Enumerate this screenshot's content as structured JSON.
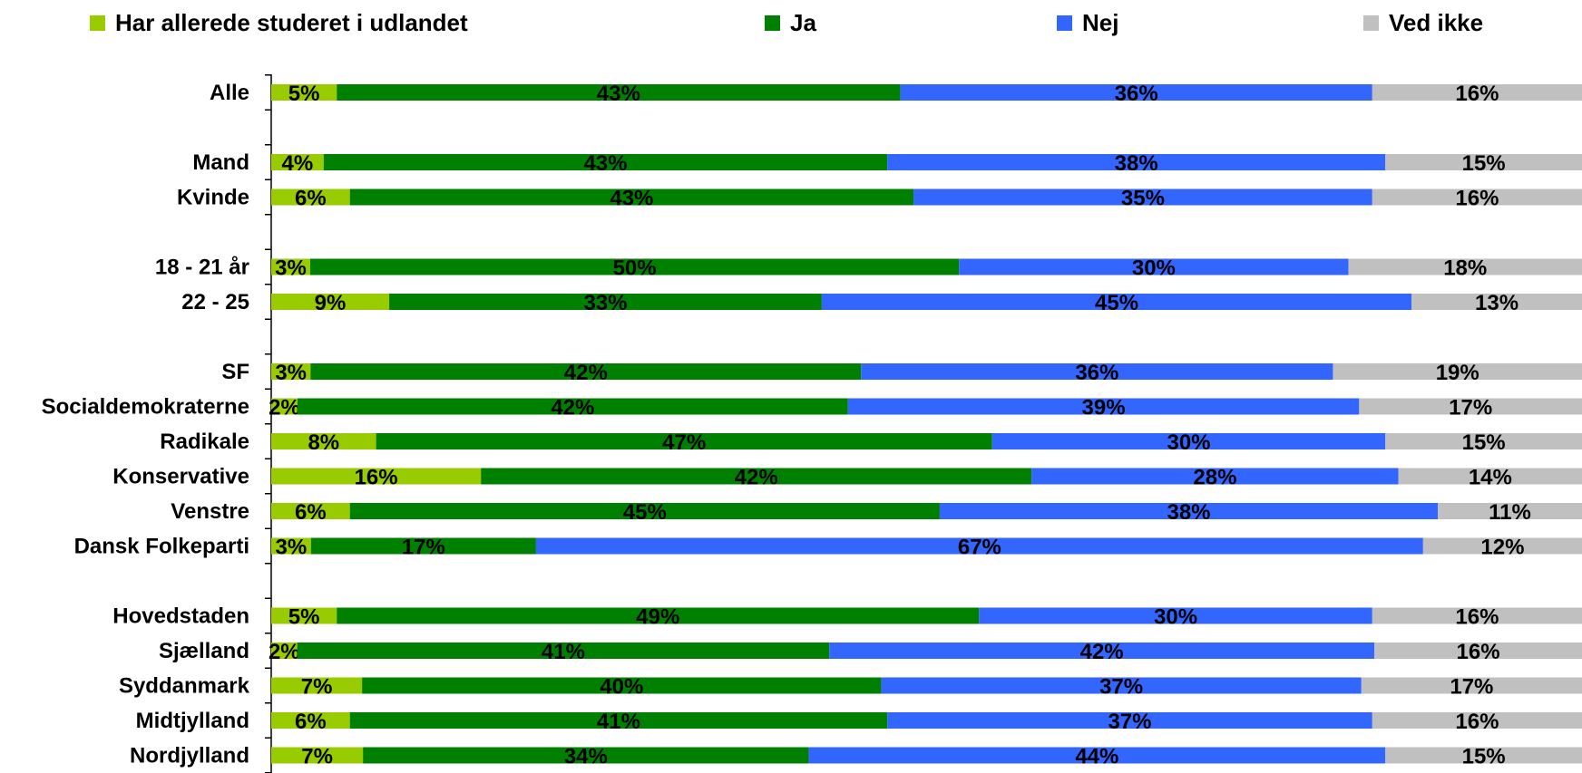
{
  "chart_data": {
    "type": "bar",
    "orientation": "horizontal",
    "stacked": true,
    "legend_position": "top",
    "grid": false,
    "xlim": [
      0,
      100
    ],
    "categories": [
      "Alle",
      "Mand",
      "Kvinde",
      "18 - 21 år",
      "22 - 25",
      "SF",
      "Socialdemokraterne",
      "Radikale",
      "Konservative",
      "Venstre",
      "Dansk Folkeparti",
      "Hovedstaden",
      "Sjælland",
      "Syddanmark",
      "Midtjylland",
      "Nordjylland"
    ],
    "groups": [
      [
        0
      ],
      [
        1,
        2
      ],
      [
        3,
        4
      ],
      [
        5,
        6,
        7,
        8,
        9,
        10
      ],
      [
        11,
        12,
        13,
        14,
        15
      ]
    ],
    "series": [
      {
        "name": "Har allerede studeret i udlandet",
        "color": "#99CC00",
        "values": [
          5,
          4,
          6,
          3,
          9,
          3,
          2,
          8,
          16,
          6,
          3,
          5,
          2,
          7,
          6,
          7
        ]
      },
      {
        "name": "Ja",
        "color": "#008000",
        "values": [
          43,
          43,
          43,
          50,
          33,
          42,
          42,
          47,
          42,
          45,
          17,
          49,
          41,
          40,
          41,
          34
        ]
      },
      {
        "name": "Nej",
        "color": "#3366FF",
        "values": [
          36,
          38,
          35,
          30,
          45,
          36,
          39,
          30,
          28,
          38,
          67,
          30,
          42,
          37,
          37,
          44
        ]
      },
      {
        "name": "Ved ikke",
        "color": "#C0C0C0",
        "values": [
          16,
          15,
          16,
          18,
          13,
          19,
          17,
          15,
          14,
          11,
          12,
          16,
          16,
          17,
          16,
          15
        ]
      }
    ],
    "value_suffix": "%"
  }
}
